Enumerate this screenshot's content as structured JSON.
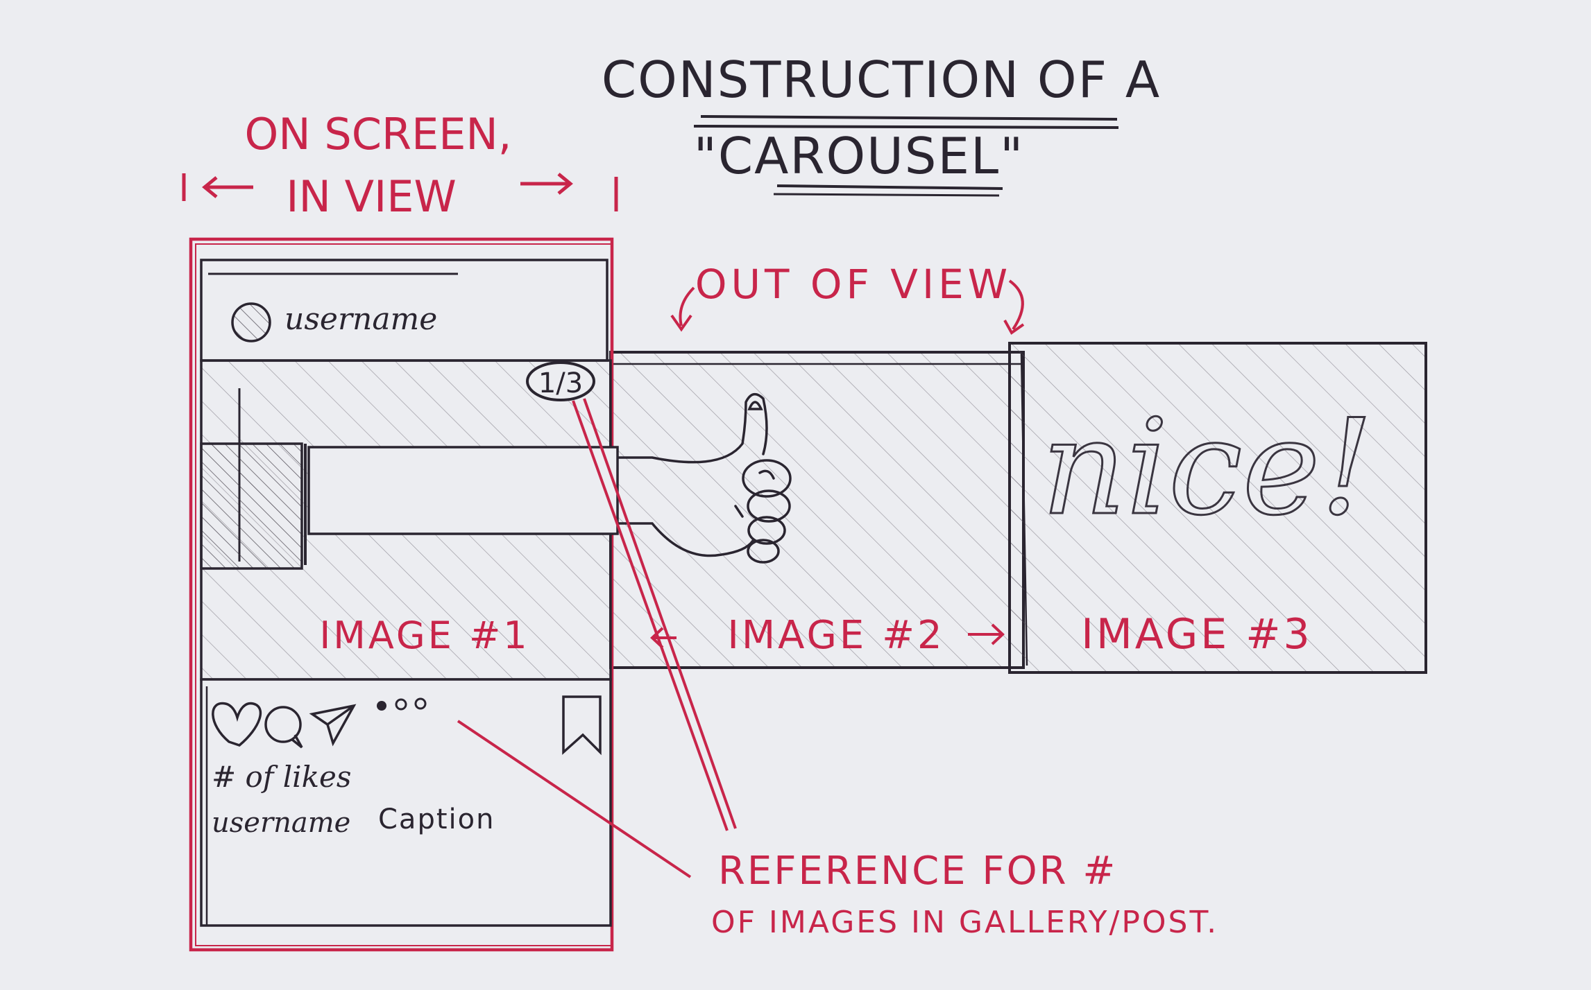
{
  "title": {
    "line1": "Construction of a",
    "line2": "\"Carousel\""
  },
  "on_screen_label": {
    "line1": "On screen,",
    "line2": "in view"
  },
  "out_of_view_label": "Out of view",
  "post": {
    "username": "username",
    "counter": "1/3",
    "likes_text": "# of likes",
    "caption_username": "username",
    "caption_text": "Caption",
    "icons": [
      "heart-icon",
      "comment-icon",
      "send-icon",
      "carousel-dots-icon",
      "bookmark-icon"
    ]
  },
  "images": [
    {
      "label": "Image #1"
    },
    {
      "label": "Image #2"
    },
    {
      "label": "Image #3",
      "content_text": "nice!"
    }
  ],
  "reference_note": {
    "line1": "Reference for #",
    "line2": "of images in gallery/post."
  },
  "colors": {
    "paper": "#ecedf1",
    "ink_red": "#c8254a",
    "ink_dark": "#2a2530"
  }
}
